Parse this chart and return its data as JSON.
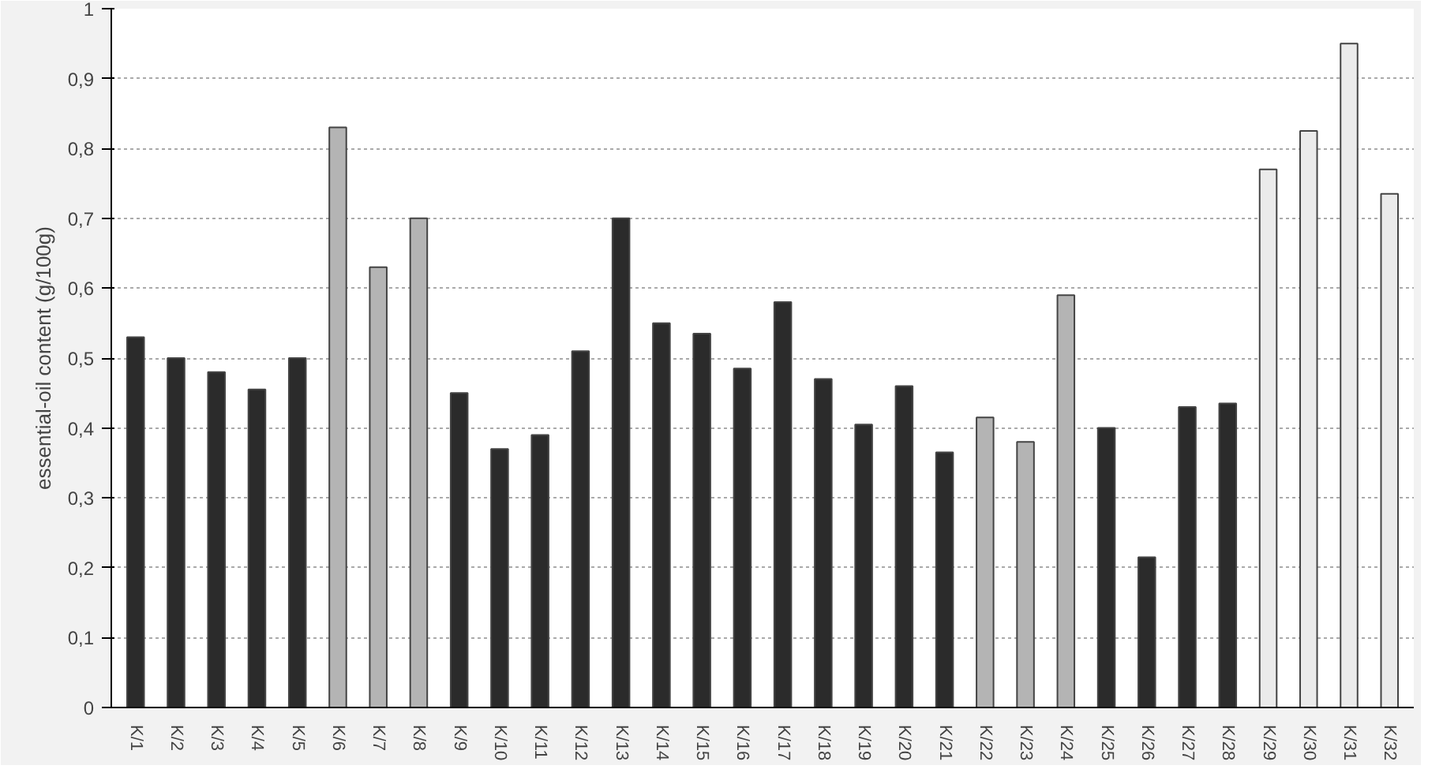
{
  "chart_data": {
    "type": "bar",
    "ylabel": "essential-oil content (g/100g)",
    "categories": [
      "K/1",
      "K/2",
      "K/3",
      "K/4",
      "K/5",
      "K/6",
      "K/7",
      "K/8",
      "K/9",
      "K/10",
      "K/11",
      "K/12",
      "K/13",
      "K/14",
      "K/15",
      "K/16",
      "K/17",
      "K/18",
      "K/19",
      "K/20",
      "K/21",
      "K/22",
      "K/23",
      "K/24",
      "K/25",
      "K/26",
      "K/27",
      "K/28",
      "K/29",
      "K/30",
      "K/31",
      "K/32"
    ],
    "values": [
      0.53,
      0.5,
      0.48,
      0.455,
      0.5,
      0.83,
      0.63,
      0.7,
      0.45,
      0.37,
      0.39,
      0.51,
      0.7,
      0.55,
      0.535,
      0.485,
      0.58,
      0.47,
      0.405,
      0.46,
      0.365,
      0.415,
      0.38,
      0.59,
      0.4,
      0.215,
      0.43,
      0.435,
      0.77,
      0.825,
      0.95,
      0.735
    ],
    "colors": [
      "#2b2b2b",
      "#2b2b2b",
      "#2b2b2b",
      "#2b2b2b",
      "#2b2b2b",
      "#b4b4b4",
      "#b4b4b4",
      "#b4b4b4",
      "#2b2b2b",
      "#2b2b2b",
      "#2b2b2b",
      "#2b2b2b",
      "#2b2b2b",
      "#2b2b2b",
      "#2b2b2b",
      "#2b2b2b",
      "#2b2b2b",
      "#2b2b2b",
      "#2b2b2b",
      "#2b2b2b",
      "#2b2b2b",
      "#b4b4b4",
      "#b4b4b4",
      "#b4b4b4",
      "#2b2b2b",
      "#2b2b2b",
      "#2b2b2b",
      "#2b2b2b",
      "#ebebeb",
      "#ebebeb",
      "#ebebeb",
      "#ebebeb"
    ],
    "ylim": [
      0,
      1
    ],
    "yticks": [
      0,
      {
        "value": 0.1,
        "label": "0,1"
      },
      {
        "value": 0.2,
        "label": "0,2"
      },
      {
        "value": 0.3,
        "label": "0,3"
      },
      {
        "value": 0.4,
        "label": "0,4"
      },
      {
        "value": 0.5,
        "label": "0,5"
      },
      {
        "value": 0.6,
        "label": "0,6"
      },
      {
        "value": 0.7,
        "label": "0,7"
      },
      {
        "value": 0.8,
        "label": "0,8"
      },
      {
        "value": 0.9,
        "label": "0,9"
      },
      1
    ],
    "grid": "y"
  }
}
